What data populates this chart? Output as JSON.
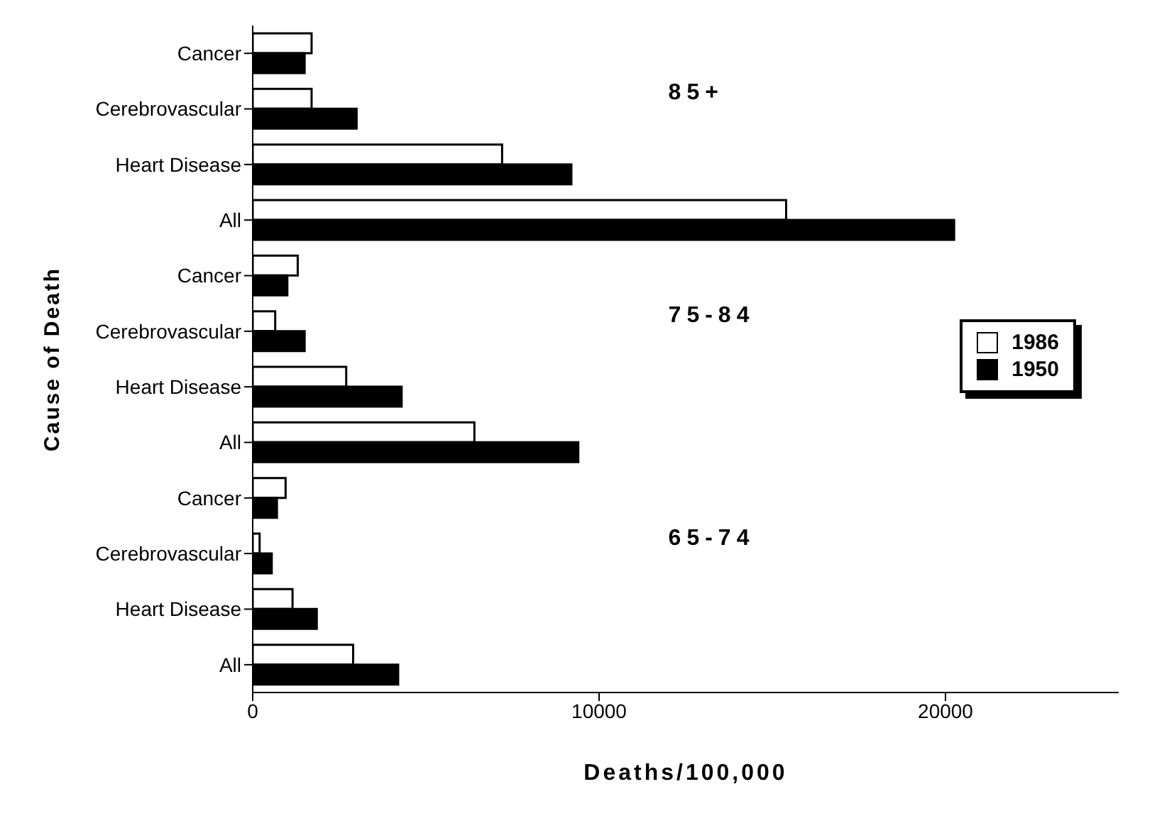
{
  "chart_data": {
    "type": "bar",
    "orientation": "horizontal",
    "xlabel": "Deaths/100,000",
    "ylabel": "Cause of Death",
    "categories": [
      "Cancer",
      "Cerebrovascular",
      "Heart Disease",
      "All",
      "Cancer",
      "Cerebrovascular",
      "Heart Disease",
      "All",
      "Cancer",
      "Cerebrovascular",
      "Heart Disease",
      "All"
    ],
    "series": [
      {
        "name": "1986",
        "color": "#ffffff",
        "values": [
          1700,
          1700,
          7200,
          15400,
          1300,
          650,
          2700,
          6400,
          950,
          200,
          1150,
          2900
        ]
      },
      {
        "name": "1950",
        "color": "#000000",
        "values": [
          1500,
          3000,
          9200,
          20250,
          1000,
          1500,
          4300,
          9400,
          700,
          550,
          1850,
          4200
        ]
      }
    ],
    "annotations": [
      "85+",
      "75-84",
      "65-74"
    ],
    "xlim": [
      0,
      25000
    ],
    "xticks": [
      0,
      10000,
      20000
    ],
    "grid": false,
    "legend": "right"
  }
}
